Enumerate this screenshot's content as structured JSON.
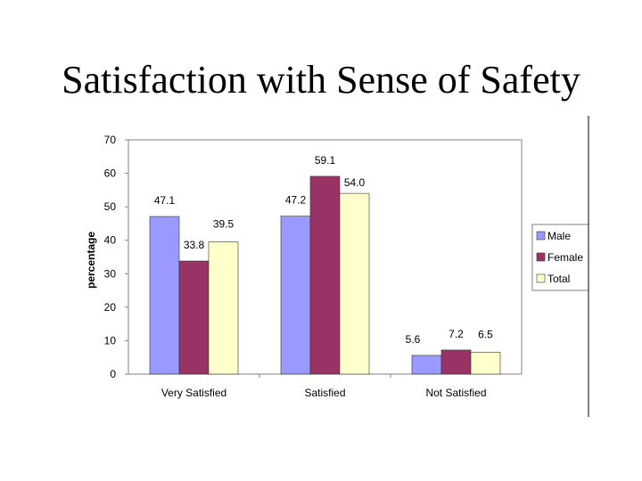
{
  "slide": {
    "title": "Satisfaction with Sense of Safety"
  },
  "chart_data": {
    "type": "bar",
    "title": "Satisfaction with Sense of Safety",
    "xlabel": "",
    "ylabel": "percentage",
    "ylim": [
      0,
      70
    ],
    "yticks": [
      0,
      10,
      20,
      30,
      40,
      50,
      60,
      70
    ],
    "grid": false,
    "legend_position": "right",
    "categories": [
      "Very Satisfied",
      "Satisfied",
      "Not Satisfied"
    ],
    "series": [
      {
        "name": "Male",
        "color": "#9999ff",
        "values": [
          47.1,
          47.2,
          5.6
        ],
        "labels": [
          "47.1",
          "47.2",
          "5.6"
        ]
      },
      {
        "name": "Female",
        "color": "#993366",
        "values": [
          33.8,
          59.1,
          7.2
        ],
        "labels": [
          "33.8",
          "59.1",
          "7.2"
        ]
      },
      {
        "name": "Total",
        "color": "#ffffcc",
        "values": [
          39.5,
          54.0,
          6.5
        ],
        "labels": [
          "39.5",
          "54.0",
          "6.5"
        ]
      }
    ]
  }
}
